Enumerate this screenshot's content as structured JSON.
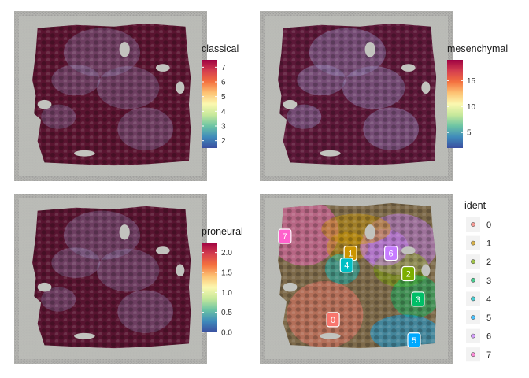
{
  "chart_data": [
    {
      "type": "heatmap",
      "feature": "classical",
      "legend_title": "classical",
      "colorbar_range": [
        1.5,
        7.5
      ],
      "colorbar_ticks": [
        2,
        3,
        4,
        5,
        6,
        7
      ],
      "palette": [
        "#3b4fa0",
        "#3f8bbb",
        "#6cc4a4",
        "#c6e89b",
        "#fbf8b0",
        "#fdc374",
        "#f4713f",
        "#d53e4f",
        "#9e0142"
      ],
      "tissue_color": "#5a1430"
    },
    {
      "type": "heatmap",
      "feature": "mesenchymal",
      "legend_title": "mesenchymal",
      "colorbar_range": [
        2,
        19
      ],
      "colorbar_ticks": [
        5,
        10,
        15
      ],
      "palette": [
        "#3b4fa0",
        "#3f8bbb",
        "#6cc4a4",
        "#c6e89b",
        "#fbf8b0",
        "#fdc374",
        "#f4713f",
        "#d53e4f",
        "#9e0142"
      ],
      "tissue_color": "#5c1838"
    },
    {
      "type": "heatmap",
      "feature": "proneural",
      "legend_title": "proneural",
      "colorbar_range": [
        0,
        2.25
      ],
      "colorbar_ticks": [
        "0.0",
        "0.5",
        "1.0",
        "1.5",
        "2.0"
      ],
      "colorbar_tick_values": [
        0,
        0.5,
        1.0,
        1.5,
        2.0
      ],
      "palette": [
        "#3b4fa0",
        "#3f8bbb",
        "#6cc4a4",
        "#c6e89b",
        "#fbf8b0",
        "#fdc374",
        "#f4713f",
        "#d53e4f",
        "#9e0142"
      ],
      "tissue_color": "#581430"
    },
    {
      "type": "scatter",
      "feature": "ident",
      "legend_title": "ident",
      "clusters": [
        {
          "label": "0",
          "color": "#f8766d"
        },
        {
          "label": "1",
          "color": "#cd9600"
        },
        {
          "label": "2",
          "color": "#7cae00"
        },
        {
          "label": "3",
          "color": "#00be67"
        },
        {
          "label": "4",
          "color": "#00bfc4"
        },
        {
          "label": "5",
          "color": "#00a9ff"
        },
        {
          "label": "6",
          "color": "#c77cff"
        },
        {
          "label": "7",
          "color": "#ff61cc"
        }
      ],
      "cluster_labels": [
        {
          "label": "7",
          "x": 0.13,
          "y": 0.25
        },
        {
          "label": "1",
          "x": 0.47,
          "y": 0.35
        },
        {
          "label": "6",
          "x": 0.68,
          "y": 0.35
        },
        {
          "label": "4",
          "x": 0.45,
          "y": 0.42
        },
        {
          "label": "2",
          "x": 0.77,
          "y": 0.47
        },
        {
          "label": "3",
          "x": 0.82,
          "y": 0.62
        },
        {
          "label": "0",
          "x": 0.38,
          "y": 0.74
        },
        {
          "label": "5",
          "x": 0.8,
          "y": 0.86
        }
      ]
    }
  ]
}
